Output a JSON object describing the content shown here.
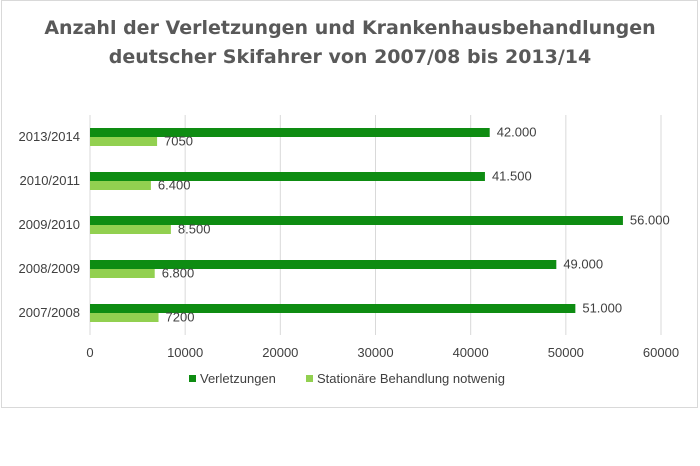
{
  "chart_data": {
    "type": "bar",
    "orientation": "horizontal",
    "title_lines": [
      "Anzahl der Verletzungen und Krankenhausbehandlungen",
      "deutscher Skifahrer von 2007/08 bis 2013/14"
    ],
    "categories": [
      "2007/2008",
      "2008/2009",
      "2009/2010",
      "2010/2011",
      "2013/2014"
    ],
    "series": [
      {
        "name": "Verletzungen",
        "color": "#0e8c12",
        "values": [
          51000,
          49000,
          56000,
          41500,
          42000
        ],
        "labels": [
          "51.000",
          "49.000",
          "56.000",
          "41.500",
          "42.000"
        ]
      },
      {
        "name": "Stationäre Behandlung notwenig",
        "color": "#92d050",
        "values": [
          7200,
          6800,
          8500,
          6400,
          7050
        ],
        "labels": [
          "7200",
          "6.800",
          "8.500",
          "6.400",
          "7050"
        ]
      }
    ],
    "xlim": [
      0,
      60000
    ],
    "xticks": [
      0,
      10000,
      20000,
      30000,
      40000,
      50000,
      60000
    ],
    "xtick_labels": [
      "0",
      "10000",
      "20000",
      "30000",
      "40000",
      "50000",
      "60000"
    ],
    "grid": true,
    "legend_position": "bottom"
  }
}
